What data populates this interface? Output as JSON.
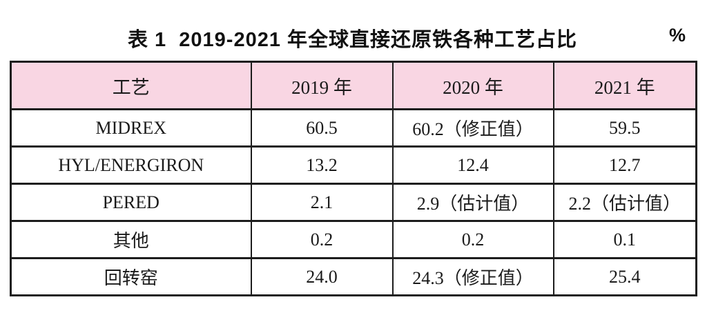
{
  "caption": {
    "label": "表 1",
    "title": "表 1  2019-2021 年全球直接还原铁各种工艺占比",
    "unit": "%"
  },
  "table": {
    "headers": [
      "工艺",
      "2019 年",
      "2020 年",
      "2021 年"
    ],
    "rows": [
      [
        "MIDREX",
        "60.5",
        "60.2（修正值）",
        "59.5"
      ],
      [
        "HYL/ENERGIRON",
        "13.2",
        "12.4",
        "12.7"
      ],
      [
        "PERED",
        "2.1",
        "2.9（估计值）",
        "2.2（估计值）"
      ],
      [
        "其他",
        "0.2",
        "0.2",
        "0.1"
      ],
      [
        "回转窑",
        "24.0",
        "24.3（修正值）",
        "25.4"
      ]
    ]
  },
  "colors": {
    "header_bg": "#f9d6e3",
    "border": "#1c1c1c",
    "text": "#1a1a1a"
  }
}
